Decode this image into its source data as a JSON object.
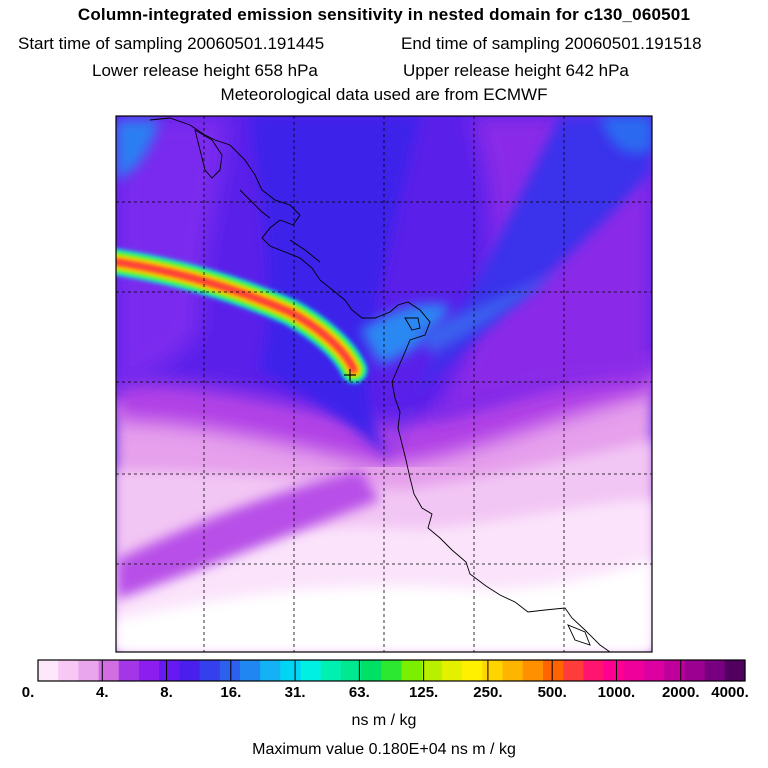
{
  "header": {
    "title": "Column-integrated emission sensitivity in nested domain for c130_060501",
    "start_label": "Start time of sampling 20060501.191445",
    "end_label": "End time of sampling 20060501.191518",
    "lower_label": "Lower release height  658 hPa",
    "upper_label": "Upper release height  642 hPa",
    "met_label": "Meteorological data used are from ECMWF"
  },
  "colorbar": {
    "ticks": [
      "0.",
      "4.",
      "8.",
      "16.",
      "31.",
      "63.",
      "125.",
      "250.",
      "500.",
      "1000.",
      "2000.",
      "4000."
    ],
    "colors": [
      "#fde8fb",
      "#f6c8f3",
      "#e9a6ec",
      "#d06ee2",
      "#a336e6",
      "#8c1ff0",
      "#6619f0",
      "#4a1fee",
      "#3340ec",
      "#2d60ec",
      "#1f86f2",
      "#14b2f4",
      "#00d6f4",
      "#00f0e4",
      "#00f0b0",
      "#00e890",
      "#00e064",
      "#2de830",
      "#7af000",
      "#b8f000",
      "#e4f000",
      "#fff000",
      "#ffd400",
      "#ffb400",
      "#ff9000",
      "#ff6400",
      "#ff3c3c",
      "#ff1470",
      "#ff0090",
      "#f0009a",
      "#dc00a0",
      "#c0009a",
      "#9c0090",
      "#780080",
      "#520060"
    ],
    "units_label": "ns m / kg",
    "max_label": "Maximum value  0.180E+04 ns m / kg"
  },
  "colors": {
    "background_low": "#f4d4f6",
    "background_mid": "#a834ea",
    "background_high": "#4a22ec",
    "plume_core": "#ff2850"
  }
}
